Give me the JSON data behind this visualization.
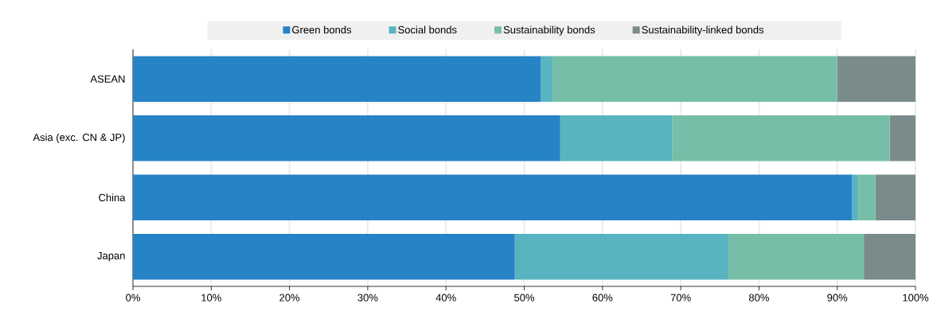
{
  "chart_data": {
    "type": "bar",
    "orientation": "horizontal",
    "stacked": true,
    "categories": [
      "ASEAN",
      "Asia (exc. CN & JP)",
      "China",
      "Japan"
    ],
    "series": [
      {
        "name": "Green bonds",
        "color": "#2683c6",
        "values": [
          52.1,
          54.6,
          91.9,
          48.8
        ]
      },
      {
        "name": "Social bonds",
        "color": "#58b4c0",
        "values": [
          1.5,
          14.3,
          0.8,
          27.3
        ]
      },
      {
        "name": "Sustainability bonds",
        "color": "#76bea7",
        "values": [
          36.4,
          27.8,
          2.2,
          17.3
        ]
      },
      {
        "name": "Sustainability-linked bonds",
        "color": "#7a8b8b",
        "values": [
          10.0,
          3.3,
          5.1,
          6.6
        ]
      }
    ],
    "xlim": [
      0,
      100
    ],
    "xticks": [
      {
        "value": 0,
        "label": "0%"
      },
      {
        "value": 10,
        "label": "10%"
      },
      {
        "value": 20,
        "label": "20%"
      },
      {
        "value": 30,
        "label": "30%"
      },
      {
        "value": 40,
        "label": "40%"
      },
      {
        "value": 50,
        "label": "50%"
      },
      {
        "value": 60,
        "label": "60%"
      },
      {
        "value": 70,
        "label": "70%"
      },
      {
        "value": 80,
        "label": "80%"
      },
      {
        "value": 90,
        "label": "90%"
      },
      {
        "value": 100,
        "label": "100%"
      }
    ],
    "grid": "x",
    "legend": "top"
  }
}
